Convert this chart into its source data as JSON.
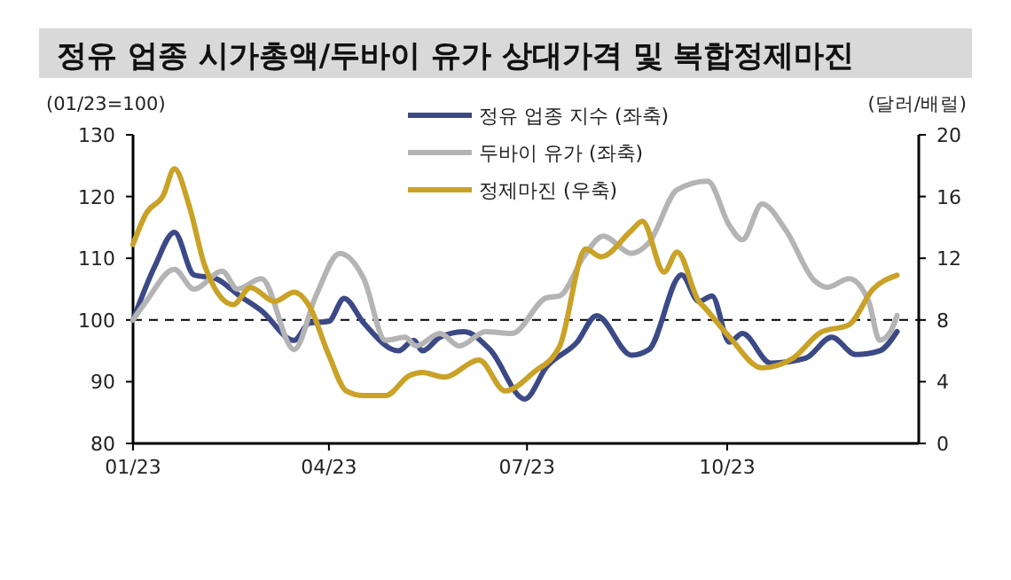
{
  "chart_data": {
    "type": "line",
    "title": "정유 업종 시가총액/두바이 유가 상대가격 및 복합정제마진",
    "ylabel": "(01/23=100)",
    "y2label": "(달러/배럴)",
    "xlim": [
      "2023-01-01",
      "2023-12-28"
    ],
    "xticks": [
      {
        "value": "2023-01-01",
        "label": "01/23"
      },
      {
        "value": "2023-04-01",
        "label": "04/23"
      },
      {
        "value": "2023-07-01",
        "label": "07/23"
      },
      {
        "value": "2023-10-01",
        "label": "10/23"
      }
    ],
    "ylim": [
      80,
      130
    ],
    "yticks": [
      80,
      90,
      100,
      110,
      120,
      130
    ],
    "y2lim": [
      0,
      20
    ],
    "y2ticks": [
      0,
      4,
      8,
      12,
      16,
      20
    ],
    "grid": false,
    "legend": "top",
    "line_style": "solid",
    "marker": "none",
    "ref_lines": [
      {
        "axis": "y",
        "value": 100,
        "line_style": "dashed",
        "color": "#000000"
      }
    ],
    "series": [
      {
        "name": "정유 업종 지수 (좌축)",
        "color": "#3b4a86",
        "x": [
          "2023-01-01",
          "2023-01-11",
          "2023-01-20",
          "2023-01-29",
          "2023-02-08",
          "2023-02-19",
          "2023-03-01",
          "2023-03-16",
          "2023-03-23",
          "2023-04-01",
          "2023-04-08",
          "2023-04-17",
          "2023-05-03",
          "2023-05-10",
          "2023-05-14",
          "2023-05-22",
          "2023-06-02",
          "2023-06-14",
          "2023-06-30",
          "2023-07-10",
          "2023-07-24",
          "2023-08-02",
          "2023-08-18",
          "2023-08-26",
          "2023-09-10",
          "2023-09-18",
          "2023-09-24",
          "2023-10-02",
          "2023-10-08",
          "2023-10-21",
          "2023-11-06",
          "2023-11-18",
          "2023-11-29",
          "2023-12-10",
          "2023-12-18"
        ],
        "values": [
          100,
          108.7,
          114.2,
          107.3,
          106.7,
          103.9,
          101.5,
          96.7,
          99.5,
          99.8,
          103.5,
          99.5,
          95,
          96.7,
          95,
          97.2,
          98.1,
          95.2,
          87.2,
          92.4,
          96.4,
          100.7,
          94.3,
          95.2,
          107.3,
          103,
          103.9,
          96.4,
          97.8,
          93,
          93.8,
          97.2,
          94.4,
          95,
          98.1
        ]
      },
      {
        "name": "두바이 유가 (좌축)",
        "color": "#b4b4b4",
        "x": [
          "2023-01-01",
          "2023-01-07",
          "2023-01-20",
          "2023-01-29",
          "2023-02-11",
          "2023-02-18",
          "2023-03-01",
          "2023-03-16",
          "2023-03-26",
          "2023-04-06",
          "2023-04-17",
          "2023-04-27",
          "2023-05-06",
          "2023-05-11",
          "2023-05-22",
          "2023-05-31",
          "2023-06-12",
          "2023-06-24",
          "2023-07-10",
          "2023-07-16",
          "2023-07-27",
          "2023-08-05",
          "2023-08-18",
          "2023-08-26",
          "2023-09-08",
          "2023-09-22",
          "2023-10-02",
          "2023-10-08",
          "2023-10-17",
          "2023-10-28",
          "2023-11-10",
          "2023-11-16",
          "2023-11-26",
          "2023-12-05",
          "2023-12-10",
          "2023-12-15",
          "2023-12-18"
        ],
        "values": [
          100,
          103,
          108.2,
          105,
          107.9,
          105,
          106.7,
          95.2,
          103.9,
          110.8,
          106.7,
          96.7,
          97.2,
          95.8,
          97.8,
          95.8,
          98.1,
          97.8,
          103.6,
          103.9,
          110.2,
          113.6,
          110.8,
          112.5,
          121.1,
          122.5,
          115.3,
          113,
          118.8,
          114.5,
          106.4,
          105.3,
          106.7,
          103,
          96.7,
          98.1,
          100.7
        ]
      },
      {
        "name": "정제마진 (우축)",
        "color": "#c9a227",
        "axis": "y2",
        "x": [
          "2023-01-01",
          "2023-01-07",
          "2023-01-15",
          "2023-01-20",
          "2023-01-27",
          "2023-02-03",
          "2023-02-16",
          "2023-02-24",
          "2023-03-07",
          "2023-03-16",
          "2023-03-23",
          "2023-04-01",
          "2023-04-09",
          "2023-04-17",
          "2023-04-27",
          "2023-05-08",
          "2023-05-14",
          "2023-05-24",
          "2023-06-09",
          "2023-06-21",
          "2023-07-04",
          "2023-07-16",
          "2023-07-28",
          "2023-08-04",
          "2023-08-18",
          "2023-08-23",
          "2023-09-02",
          "2023-09-08",
          "2023-09-18",
          "2023-09-20",
          "2023-10-02",
          "2023-10-17",
          "2023-10-31",
          "2023-11-13",
          "2023-11-26",
          "2023-12-07",
          "2023-12-18"
        ],
        "values": [
          12.9,
          14.9,
          16.1,
          17.8,
          15.3,
          11.5,
          9,
          10.1,
          9.2,
          9.8,
          8.9,
          5.7,
          3.4,
          3.1,
          3.1,
          4.4,
          4.6,
          4.3,
          5.4,
          3.4,
          4.6,
          6.3,
          12.6,
          12.1,
          13.8,
          14.4,
          11.1,
          12.4,
          9.2,
          8.9,
          6.9,
          4.9,
          5.5,
          7.2,
          7.7,
          10,
          10.9
        ]
      }
    ]
  }
}
